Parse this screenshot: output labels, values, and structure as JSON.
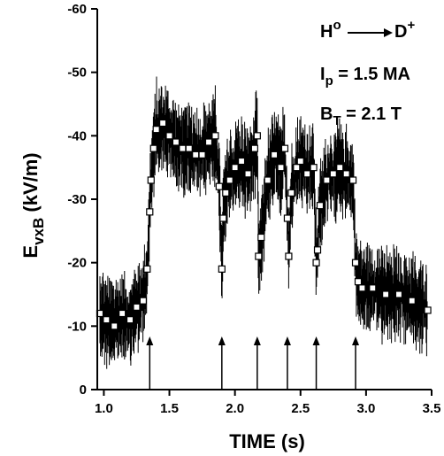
{
  "chart_data": {
    "type": "scatter",
    "xlabel": "TIME (s)",
    "ylabel": {
      "main": "E",
      "sub": "vxB",
      "unit": " (kV/m)"
    },
    "xlim": [
      0.95,
      3.5
    ],
    "ylim": [
      0,
      -60
    ],
    "x_ticks": [
      1.0,
      1.5,
      2.0,
      2.5,
      3.0,
      3.5
    ],
    "x_tick_labels": [
      "1.0",
      "1.5",
      "2.0",
      "2.5",
      "3.0",
      "3.5"
    ],
    "y_ticks": [
      0,
      -10,
      -20,
      -30,
      -40,
      -50,
      -60
    ],
    "y_tick_labels": [
      "0",
      "-10",
      "-20",
      "-30",
      "-40",
      "-50",
      "-60"
    ],
    "annotations": {
      "reaction": {
        "h": "H",
        "h_sup": "o",
        "d": "D",
        "d_sup": "+"
      },
      "ip": {
        "sym": "I",
        "sub": "p",
        "value": " = 1.5 MA"
      },
      "bt": {
        "sym": "B",
        "sub": "T",
        "value": " = 2.1 T"
      }
    },
    "arrows_x": [
      1.35,
      1.9,
      2.17,
      2.4,
      2.62,
      2.92
    ],
    "series": [
      {
        "marker": "open-square",
        "x": [
          0.97,
          1.02,
          1.08,
          1.14,
          1.2,
          1.25,
          1.3,
          1.33,
          1.35,
          1.36,
          1.38,
          1.4,
          1.45,
          1.5,
          1.55,
          1.6,
          1.65,
          1.7,
          1.75,
          1.8,
          1.85,
          1.88,
          1.9,
          1.91,
          1.93,
          1.96,
          2.0,
          2.05,
          2.1,
          2.15,
          2.17,
          2.18,
          2.2,
          2.25,
          2.3,
          2.35,
          2.38,
          2.4,
          2.41,
          2.43,
          2.47,
          2.5,
          2.55,
          2.6,
          2.62,
          2.63,
          2.65,
          2.7,
          2.75,
          2.8,
          2.85,
          2.9,
          2.92,
          2.94,
          2.97,
          3.05,
          3.15,
          3.25,
          3.35,
          3.47
        ],
        "y": [
          -12,
          -11,
          -10,
          -12,
          -11,
          -13,
          -14,
          -19,
          -28,
          -33,
          -38,
          -41,
          -42,
          -40,
          -39,
          -38,
          -38,
          -37,
          -37,
          -39,
          -40,
          -32,
          -19,
          -27,
          -31,
          -33,
          -35,
          -36,
          -34,
          -38,
          -40,
          -21,
          -24,
          -33,
          -37,
          -35,
          -38,
          -27,
          -21,
          -31,
          -35,
          -36,
          -34,
          -35,
          -20,
          -22,
          -29,
          -33,
          -34,
          -35,
          -34,
          -33,
          -20,
          -17,
          -16,
          -16,
          -15,
          -15,
          -14,
          -12.5
        ]
      }
    ]
  }
}
